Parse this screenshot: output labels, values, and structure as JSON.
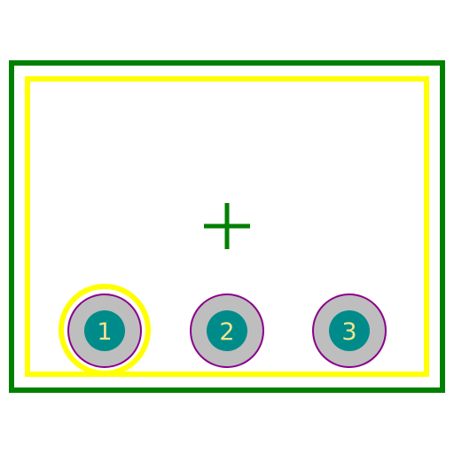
{
  "colors": {
    "background": "#ffffff",
    "courtyard": "#008000",
    "silkscreen": "#ffff00",
    "pad_copper": "#bebebe",
    "pad_outline": "#8b008b",
    "drill": "#008b8b",
    "pad_number": "#f0e68c"
  },
  "origin_marker": "crosshair",
  "pin1_marker": "silkscreen-ring",
  "pads": [
    {
      "number": "1"
    },
    {
      "number": "2"
    },
    {
      "number": "3"
    }
  ]
}
